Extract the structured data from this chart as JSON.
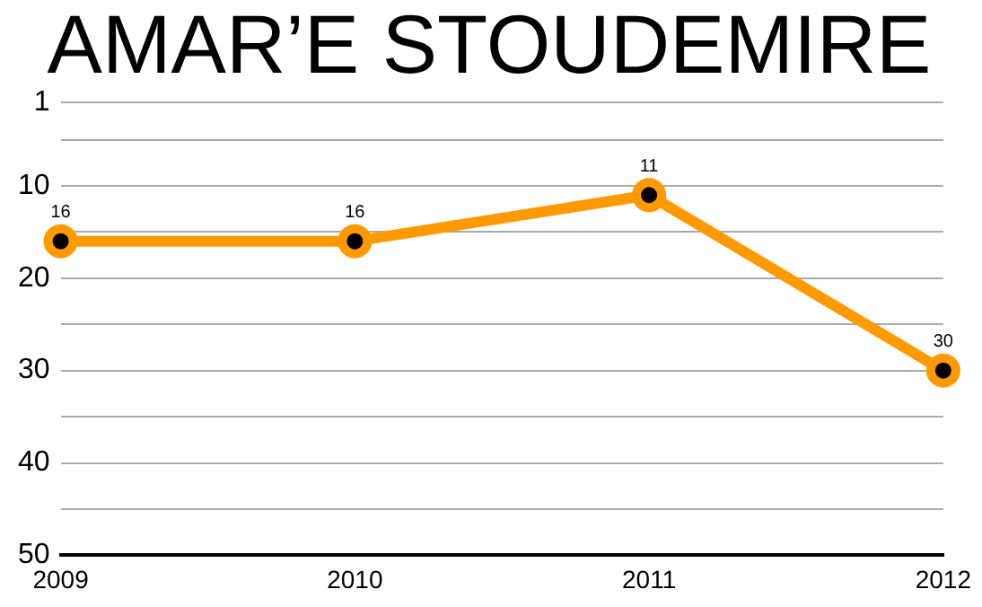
{
  "chart_data": {
    "type": "line",
    "title": "AMAR’E STOUDEMIRE",
    "categories": [
      "2009",
      "2010",
      "2011",
      "2012"
    ],
    "series": [
      {
        "color": "#ff9900",
        "values": [
          16,
          16,
          11,
          30
        ]
      }
    ],
    "ylim": [
      50,
      1
    ],
    "yticks": [
      1,
      {
        "value": 5,
        "label": null
      },
      10,
      {
        "value": 15,
        "label": null
      },
      20,
      {
        "value": 25,
        "label": null
      },
      30,
      {
        "value": 35,
        "label": null
      },
      40,
      {
        "value": 45,
        "label": null
      },
      50
    ],
    "grid": "y",
    "legend": false,
    "marker": "circle",
    "line_style": "solid",
    "data_labels": true
  }
}
